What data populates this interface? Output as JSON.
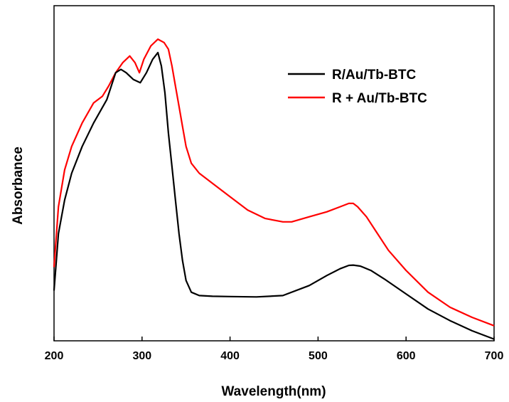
{
  "chart_data": {
    "type": "line",
    "title": "",
    "xlabel": "Wavelength(nm)",
    "ylabel": "Absorbance",
    "xlim": [
      200,
      700
    ],
    "ylim": [
      0,
      1
    ],
    "xticks": [
      200,
      300,
      400,
      500,
      600,
      700
    ],
    "xtick_labels": [
      "200",
      "300",
      "400",
      "500",
      "600",
      "700"
    ],
    "yticks_shown": false,
    "grid": false,
    "legend_position": "top-right",
    "series": [
      {
        "name": "R/Au/Tb-BTC",
        "color": "#000000",
        "x": [
          200,
          205,
          212,
          220,
          232,
          245,
          260,
          270,
          276,
          282,
          290,
          298,
          305,
          312,
          318,
          322,
          326,
          330,
          334,
          338,
          342,
          346,
          350,
          356,
          365,
          380,
          400,
          430,
          460,
          490,
          510,
          525,
          535,
          540,
          548,
          560,
          575,
          600,
          625,
          650,
          675,
          700
        ],
        "y": [
          0.15,
          0.32,
          0.42,
          0.5,
          0.58,
          0.65,
          0.72,
          0.8,
          0.81,
          0.8,
          0.78,
          0.77,
          0.8,
          0.84,
          0.86,
          0.82,
          0.74,
          0.62,
          0.52,
          0.42,
          0.32,
          0.24,
          0.18,
          0.145,
          0.135,
          0.133,
          0.132,
          0.131,
          0.135,
          0.165,
          0.195,
          0.215,
          0.225,
          0.226,
          0.223,
          0.21,
          0.185,
          0.14,
          0.095,
          0.06,
          0.03,
          0.005
        ]
      },
      {
        "name": "R + Au/Tb-BTC",
        "color": "#ff0000",
        "x": [
          200,
          205,
          212,
          220,
          232,
          245,
          255,
          262,
          270,
          278,
          286,
          292,
          297,
          302,
          310,
          318,
          325,
          330,
          334,
          338,
          342,
          346,
          350,
          356,
          365,
          380,
          400,
          420,
          440,
          460,
          470,
          490,
          510,
          525,
          535,
          540,
          545,
          555,
          565,
          580,
          600,
          625,
          650,
          675,
          700
        ],
        "y": [
          0.22,
          0.4,
          0.51,
          0.58,
          0.65,
          0.71,
          0.73,
          0.76,
          0.8,
          0.83,
          0.85,
          0.83,
          0.8,
          0.84,
          0.88,
          0.9,
          0.89,
          0.87,
          0.82,
          0.76,
          0.7,
          0.64,
          0.58,
          0.53,
          0.5,
          0.47,
          0.43,
          0.39,
          0.365,
          0.355,
          0.355,
          0.37,
          0.385,
          0.4,
          0.41,
          0.41,
          0.4,
          0.37,
          0.33,
          0.27,
          0.21,
          0.145,
          0.1,
          0.07,
          0.045
        ]
      }
    ]
  }
}
